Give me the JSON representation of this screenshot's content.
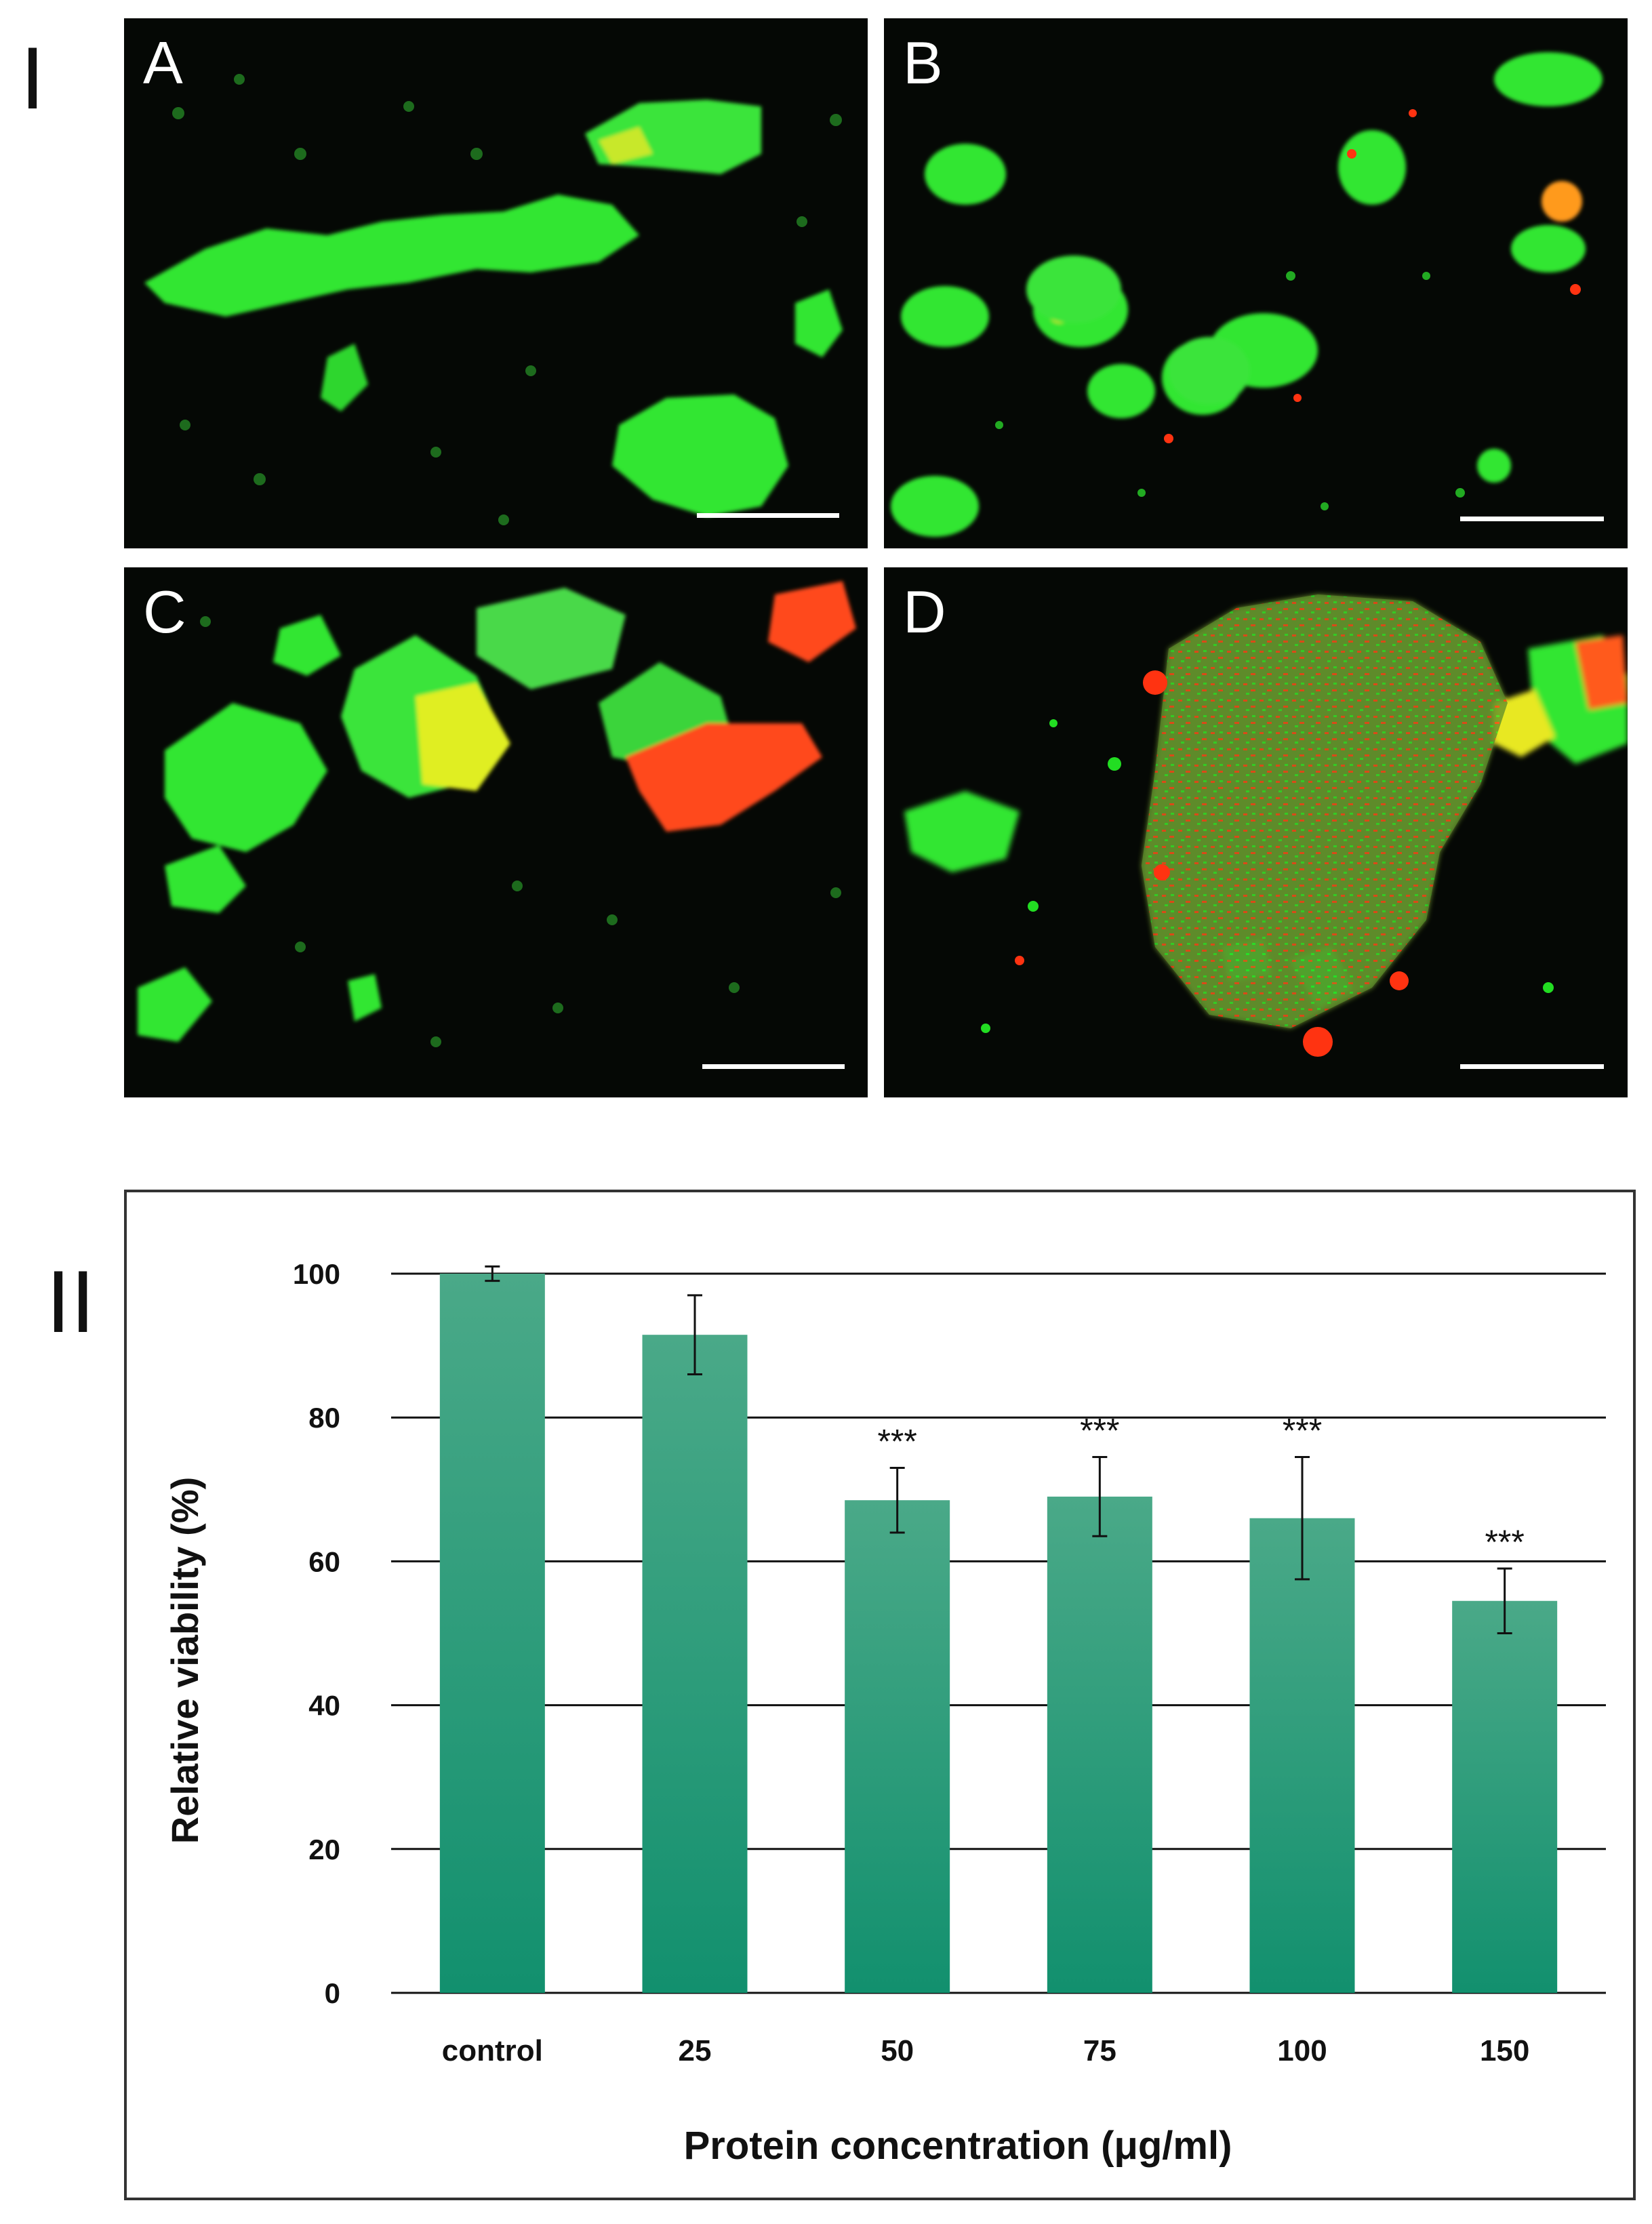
{
  "figure": {
    "section_labels": [
      "I",
      "II"
    ],
    "micrograph_panels": [
      {
        "letter": "A",
        "image": "fluorescence-micrograph-mostly-green"
      },
      {
        "letter": "B",
        "image": "fluorescence-micrograph-green-some-red"
      },
      {
        "letter": "C",
        "image": "fluorescence-micrograph-green-yellow-red"
      },
      {
        "letter": "D",
        "image": "fluorescence-micrograph-mixed-red-green"
      }
    ],
    "colors": {
      "live_stain": "#22dd22",
      "dead_stain": "#ff3311",
      "panel_background": "#050805",
      "bar_top": "#4aa988",
      "bar_bottom": "#12906e"
    }
  },
  "chart_data": {
    "type": "bar",
    "categories": [
      "control",
      "25",
      "50",
      "75",
      "100",
      "150"
    ],
    "values": [
      100,
      91.5,
      68.5,
      69,
      66,
      54.5
    ],
    "errors": [
      1,
      5.5,
      4.5,
      5.5,
      8.5,
      4.5
    ],
    "annotations": [
      "",
      "",
      "***",
      "***",
      "***",
      "***"
    ],
    "xlabel": "Protein concentration (μg/ml)",
    "ylabel": "Relative viability  (%)",
    "ylim": [
      0,
      100
    ],
    "yticks": [
      "0",
      "20",
      "40",
      "60",
      "80",
      "100"
    ],
    "grid": true
  }
}
